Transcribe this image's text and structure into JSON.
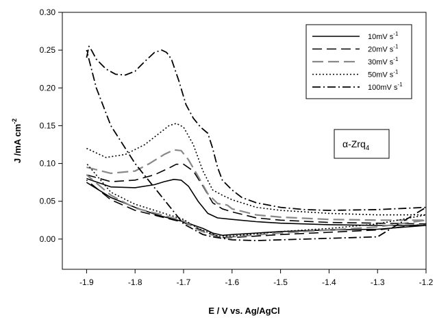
{
  "chart_data": {
    "type": "line",
    "title": "",
    "xlabel": "E / V vs. Ag/AgCl",
    "ylabel_main": "J /mA cm",
    "ylabel_sup": "-2",
    "xlim": [
      -1.95,
      -1.2
    ],
    "ylim": [
      -0.04,
      0.3
    ],
    "x_reversed": false,
    "grid": false,
    "legend_position": "top-right",
    "x_ticks": [
      -1.9,
      -1.8,
      -1.7,
      -1.6,
      -1.5,
      -1.4,
      -1.3,
      -1.2
    ],
    "x_tick_labels": [
      "-1.9",
      "-1.8",
      "-1.7",
      "-1.6",
      "-1.5",
      "-1.4",
      "-1.3",
      "-1.2"
    ],
    "y_ticks": [
      0.0,
      0.05,
      0.1,
      0.15,
      0.2,
      0.25,
      0.3
    ],
    "y_tick_labels": [
      "0.00",
      "0.05",
      "0.10",
      "0.15",
      "0.20",
      "0.25",
      "0.30"
    ],
    "annotation": {
      "prefix": "α-Zrq",
      "sub": "4"
    },
    "series": [
      {
        "name": "10mV s",
        "unit_sup": "-1",
        "color": "#000000",
        "dash": "solid",
        "width": 1.6,
        "x": [
          -1.9,
          -1.85,
          -1.8,
          -1.76,
          -1.74,
          -1.72,
          -1.705,
          -1.69,
          -1.67,
          -1.65,
          -1.63,
          -1.6,
          -1.55,
          -1.5,
          -1.4,
          -1.3,
          -1.2,
          -1.3,
          -1.4,
          -1.5,
          -1.6,
          -1.62,
          -1.64,
          -1.66,
          -1.7,
          -1.75,
          -1.8,
          -1.85,
          -1.9
        ],
        "y": [
          0.08,
          0.069,
          0.068,
          0.072,
          0.076,
          0.079,
          0.078,
          0.07,
          0.05,
          0.034,
          0.028,
          0.026,
          0.023,
          0.021,
          0.019,
          0.018,
          0.018,
          0.013,
          0.012,
          0.01,
          0.006,
          0.005,
          0.008,
          0.014,
          0.023,
          0.031,
          0.042,
          0.055,
          0.075
        ]
      },
      {
        "name": "20mV s",
        "unit_sup": "-1",
        "color": "#000000",
        "dash": "14,7",
        "width": 1.6,
        "x": [
          -1.9,
          -1.85,
          -1.8,
          -1.76,
          -1.73,
          -1.715,
          -1.7,
          -1.68,
          -1.66,
          -1.64,
          -1.62,
          -1.6,
          -1.55,
          -1.5,
          -1.4,
          -1.3,
          -1.2,
          -1.3,
          -1.4,
          -1.5,
          -1.6,
          -1.62,
          -1.65,
          -1.7,
          -1.75,
          -1.8,
          -1.85,
          -1.9
        ],
        "y": [
          0.085,
          0.076,
          0.078,
          0.085,
          0.094,
          0.099,
          0.099,
          0.09,
          0.07,
          0.048,
          0.04,
          0.036,
          0.028,
          0.025,
          0.022,
          0.021,
          0.02,
          0.012,
          0.009,
          0.006,
          0.002,
          0.002,
          0.008,
          0.022,
          0.03,
          0.038,
          0.052,
          0.078
        ]
      },
      {
        "name": "30mV s",
        "unit_sup": "-1",
        "color": "#888888",
        "dash": "16,7",
        "width": 2.2,
        "x": [
          -1.9,
          -1.85,
          -1.8,
          -1.77,
          -1.74,
          -1.72,
          -1.705,
          -1.69,
          -1.67,
          -1.65,
          -1.63,
          -1.61,
          -1.6,
          -1.55,
          -1.5,
          -1.4,
          -1.3,
          -1.2,
          -1.3,
          -1.4,
          -1.5,
          -1.6,
          -1.63,
          -1.67,
          -1.7,
          -1.75,
          -1.8,
          -1.85,
          -1.9
        ],
        "y": [
          0.095,
          0.087,
          0.09,
          0.1,
          0.112,
          0.118,
          0.117,
          0.105,
          0.083,
          0.06,
          0.047,
          0.045,
          0.04,
          0.032,
          0.029,
          0.026,
          0.025,
          0.025,
          0.016,
          0.012,
          0.008,
          0.003,
          0.003,
          0.012,
          0.024,
          0.033,
          0.041,
          0.058,
          0.085
        ]
      },
      {
        "name": "50mV s",
        "unit_sup": "-1",
        "color": "#000000",
        "dash": "2,3",
        "width": 1.6,
        "x": [
          -1.9,
          -1.86,
          -1.82,
          -1.78,
          -1.75,
          -1.73,
          -1.715,
          -1.7,
          -1.68,
          -1.66,
          -1.64,
          -1.62,
          -1.6,
          -1.55,
          -1.5,
          -1.4,
          -1.3,
          -1.2,
          -1.3,
          -1.4,
          -1.5,
          -1.6,
          -1.63,
          -1.67,
          -1.7,
          -1.75,
          -1.8,
          -1.85,
          -1.9
        ],
        "y": [
          0.12,
          0.108,
          0.112,
          0.125,
          0.14,
          0.15,
          0.153,
          0.148,
          0.125,
          0.09,
          0.065,
          0.058,
          0.052,
          0.042,
          0.038,
          0.034,
          0.032,
          0.032,
          0.02,
          0.014,
          0.01,
          0.004,
          0.004,
          0.014,
          0.026,
          0.036,
          0.046,
          0.062,
          0.1
        ]
      },
      {
        "name": "100mV s",
        "unit_sup": "-1",
        "color": "#000000",
        "dash": "12,4,2,4",
        "width": 1.8,
        "x": [
          -1.9,
          -1.895,
          -1.89,
          -1.88,
          -1.86,
          -1.84,
          -1.82,
          -1.8,
          -1.78,
          -1.76,
          -1.745,
          -1.735,
          -1.725,
          -1.71,
          -1.695,
          -1.68,
          -1.665,
          -1.65,
          -1.64,
          -1.63,
          -1.62,
          -1.6,
          -1.58,
          -1.55,
          -1.5,
          -1.45,
          -1.4,
          -1.3,
          -1.2,
          -1.3,
          -1.4,
          -1.5,
          -1.55,
          -1.6,
          -1.62,
          -1.64,
          -1.66,
          -1.7,
          -1.75,
          -1.8,
          -1.85,
          -1.88,
          -1.9
        ],
        "y": [
          0.24,
          0.255,
          0.25,
          0.238,
          0.225,
          0.218,
          0.217,
          0.222,
          0.235,
          0.247,
          0.25,
          0.247,
          0.238,
          0.21,
          0.178,
          0.16,
          0.148,
          0.14,
          0.12,
          0.095,
          0.078,
          0.065,
          0.055,
          0.048,
          0.042,
          0.039,
          0.038,
          0.039,
          0.042,
          0.003,
          0.001,
          -0.001,
          -0.002,
          -0.001,
          0.001,
          0.003,
          0.006,
          0.02,
          0.06,
          0.1,
          0.15,
          0.2,
          0.25
        ]
      }
    ]
  }
}
